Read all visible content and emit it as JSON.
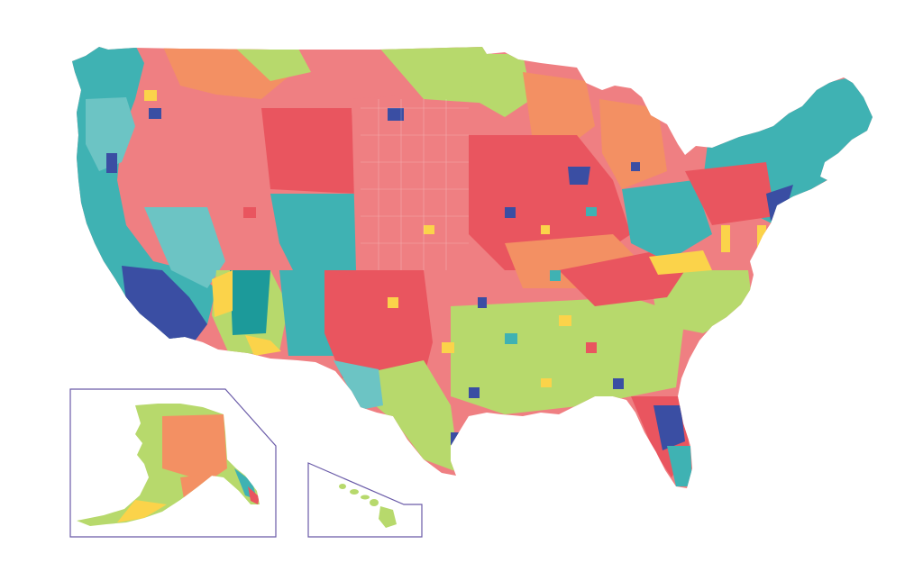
{
  "map": {
    "palette": {
      "coral_red": "#e9555f",
      "salmon_pink": "#ef7f82",
      "orange": "#f39063",
      "lime_green": "#b7d96c",
      "teal": "#3fb2b3",
      "light_teal": "#6cc4c4",
      "navy_blue": "#3a4ea3",
      "yellow": "#fbd34a",
      "dark_teal": "#1c9a9a"
    },
    "insets": [
      {
        "name": "alaska-inset"
      },
      {
        "name": "hawaii-inset"
      }
    ],
    "inset_border_color": "#6a5ba8"
  }
}
